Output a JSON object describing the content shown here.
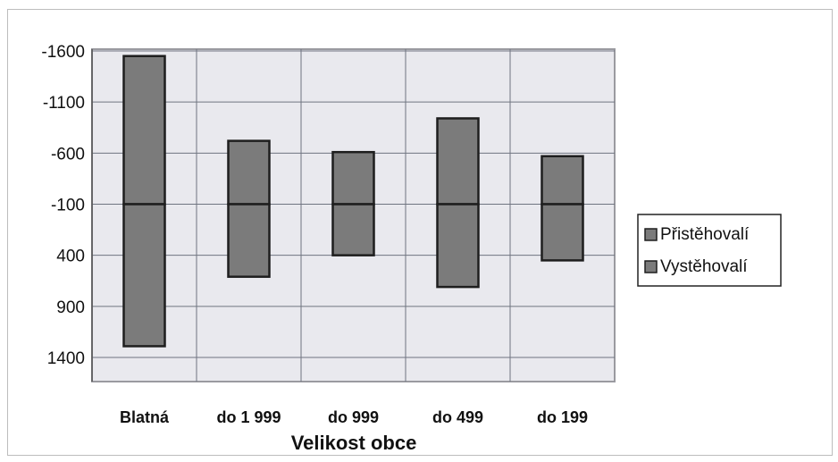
{
  "chart_data": {
    "type": "bar",
    "title": "",
    "xlabel": "Velikost obce",
    "ylabel": "",
    "y_reversed": true,
    "ylim": [
      -1600,
      1600
    ],
    "y_ticks": [
      -1600,
      -1100,
      -600,
      -100,
      400,
      900,
      1400
    ],
    "grid": true,
    "legend_position": "right",
    "categories": [
      "Blatná",
      "do 1 999",
      "do 999",
      "do 499",
      "do 199"
    ],
    "series": [
      {
        "name": "Přistěhovalí",
        "values": [
          1450,
          620,
          510,
          840,
          470
        ]
      },
      {
        "name": "Vystěhovalí",
        "values": [
          1390,
          710,
          500,
          810,
          550
        ]
      }
    ],
    "baseline": -100,
    "colors": {
      "bar": "#7b7b7b",
      "bar_edge": "#1e1e1e",
      "plot_bg": "#e9e9ee",
      "grid": "#6f7480"
    }
  }
}
